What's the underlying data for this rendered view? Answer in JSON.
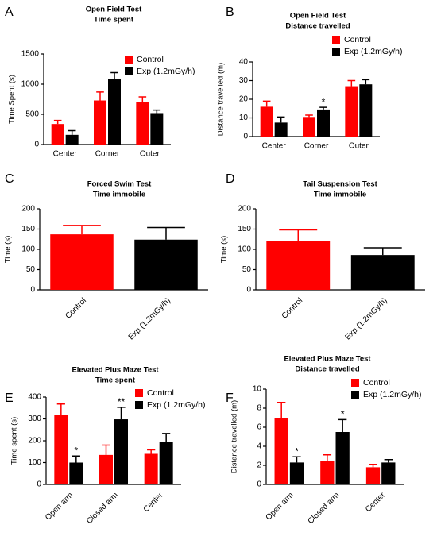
{
  "chart_data": [
    {
      "type": "bar",
      "panel": "A",
      "title": "Open Field Test",
      "subtitle": "Time spent",
      "ylabel": "Time Spent (s)",
      "categories": [
        "Center",
        "Corner",
        "Outer"
      ],
      "series": [
        {
          "name": "Control",
          "color": "#ff0000",
          "values": [
            340,
            730,
            700
          ],
          "errors": [
            60,
            140,
            90
          ]
        },
        {
          "name": "Exp (1.2mGy/h)",
          "color": "#000000",
          "values": [
            160,
            1090,
            520
          ],
          "errors": [
            70,
            100,
            50
          ]
        }
      ],
      "ylim": [
        0,
        1500
      ],
      "yticks": [
        0,
        500,
        1000,
        1500
      ],
      "legend": "upper right"
    },
    {
      "type": "bar",
      "panel": "B",
      "title": "Open Field Test",
      "subtitle": "Distance travelled",
      "ylabel": "Distance travelled (m)",
      "categories": [
        "Center",
        "Corner",
        "Outer"
      ],
      "series": [
        {
          "name": "Control",
          "color": "#ff0000",
          "values": [
            16,
            10.5,
            27
          ],
          "errors": [
            3,
            1,
            3
          ]
        },
        {
          "name": "Exp (1.2mGy/h)",
          "color": "#000000",
          "values": [
            7.5,
            14.5,
            28
          ],
          "errors": [
            3,
            1.2,
            2.5
          ],
          "annotations": [
            null,
            "*",
            null
          ]
        }
      ],
      "ylim": [
        0,
        40
      ],
      "yticks": [
        0,
        10,
        20,
        30,
        40
      ],
      "legend": "upper right"
    },
    {
      "type": "bar",
      "panel": "C",
      "title": "Forced Swim Test",
      "subtitle": "Time immobile",
      "ylabel": "Time (s)",
      "categories": [
        "Control",
        "Exp (1.2mGy/h)"
      ],
      "series": [
        {
          "colors": [
            "#ff0000",
            "#000000"
          ],
          "values": [
            137,
            124
          ],
          "errors": [
            22,
            30
          ]
        }
      ],
      "ylim": [
        0,
        200
      ],
      "yticks": [
        0,
        50,
        100,
        150,
        200
      ]
    },
    {
      "type": "bar",
      "panel": "D",
      "title": "Tail Suspension Test",
      "subtitle": "Time immobile",
      "ylabel": "Time (s)",
      "categories": [
        "Control",
        "Exp (1.2mGy/h)"
      ],
      "series": [
        {
          "colors": [
            "#ff0000",
            "#000000"
          ],
          "values": [
            121,
            86
          ],
          "errors": [
            27,
            18
          ]
        }
      ],
      "ylim": [
        0,
        200
      ],
      "yticks": [
        0,
        50,
        100,
        150,
        200
      ]
    },
    {
      "type": "bar",
      "panel": "E",
      "title": "Elevated Plus Maze Test",
      "subtitle": "Time spent",
      "ylabel": "Time spent (s)",
      "categories": [
        "Open arm",
        "Closed arm",
        "Center"
      ],
      "series": [
        {
          "name": "Control",
          "color": "#ff0000",
          "values": [
            318,
            135,
            140
          ],
          "errors": [
            50,
            45,
            18
          ]
        },
        {
          "name": "Exp (1.2mGy/h)",
          "color": "#000000",
          "values": [
            100,
            298,
            195
          ],
          "errors": [
            30,
            55,
            38
          ],
          "annotations": [
            "*",
            "**",
            null
          ]
        }
      ],
      "ylim": [
        0,
        400
      ],
      "yticks": [
        0,
        100,
        200,
        300,
        400
      ],
      "legend": "upper right"
    },
    {
      "type": "bar",
      "panel": "F",
      "title": "Elevated Plus Maze Test",
      "subtitle": "Distance travelled",
      "ylabel": "Distance travelled (m)",
      "categories": [
        "Open arm",
        "Closed arm",
        "Center"
      ],
      "series": [
        {
          "name": "Control",
          "color": "#ff0000",
          "values": [
            7.0,
            2.5,
            1.8
          ],
          "errors": [
            1.6,
            0.6,
            0.3
          ]
        },
        {
          "name": "Exp (1.2mGy/h)",
          "color": "#000000",
          "values": [
            2.3,
            5.5,
            2.3
          ],
          "errors": [
            0.6,
            1.3,
            0.3
          ],
          "annotations": [
            "*",
            "*",
            null
          ]
        }
      ],
      "ylim": [
        0,
        10
      ],
      "yticks": [
        0,
        2,
        4,
        6,
        8,
        10
      ],
      "legend": "upper right"
    }
  ]
}
